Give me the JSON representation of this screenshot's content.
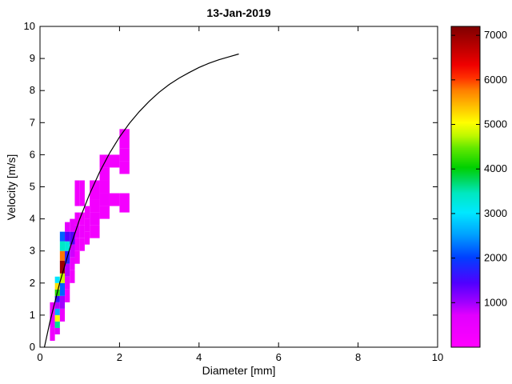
{
  "figure": {
    "title": "13-Jan-2019",
    "xlabel": "Diameter [mm]",
    "ylabel": "Velocity [m/s]"
  },
  "chart_data": {
    "type": "heatmap",
    "title": "13-Jan-2019",
    "xlabel": "Diameter [mm]",
    "ylabel": "Velocity [m/s]",
    "xlim": [
      0,
      10
    ],
    "ylim": [
      0,
      10
    ],
    "xticks": [
      0,
      2,
      4,
      6,
      8,
      10
    ],
    "yticks": [
      0,
      1,
      2,
      3,
      4,
      5,
      6,
      7,
      8,
      9,
      10
    ],
    "grid": false,
    "colorbar": {
      "min": 0,
      "max": 7200,
      "ticks": [
        1000,
        2000,
        3000,
        4000,
        5000,
        6000,
        7000
      ],
      "position": "right"
    },
    "colormap": [
      [
        0.0,
        "#ff00ff"
      ],
      [
        0.1,
        "#e100ff"
      ],
      [
        0.14,
        "#a000ff"
      ],
      [
        0.2,
        "#5000ff"
      ],
      [
        0.28,
        "#0040ff"
      ],
      [
        0.35,
        "#00a0ff"
      ],
      [
        0.42,
        "#00e8ff"
      ],
      [
        0.48,
        "#00e8c0"
      ],
      [
        0.52,
        "#00d860"
      ],
      [
        0.56,
        "#00d000"
      ],
      [
        0.62,
        "#60e800"
      ],
      [
        0.66,
        "#c0f800"
      ],
      [
        0.7,
        "#ffff00"
      ],
      [
        0.75,
        "#ffc000"
      ],
      [
        0.8,
        "#ff8000"
      ],
      [
        0.84,
        "#ff3000"
      ],
      [
        0.88,
        "#f00000"
      ],
      [
        0.93,
        "#c00000"
      ],
      [
        1.0,
        "#7f0000"
      ]
    ],
    "cells_format": [
      "d0",
      "d1",
      "v0",
      "v1",
      "count"
    ],
    "cells": [
      [
        0.25,
        0.375,
        0.2,
        0.6,
        350
      ],
      [
        0.25,
        0.375,
        0.6,
        1.0,
        600
      ],
      [
        0.25,
        0.375,
        1.0,
        1.4,
        450
      ],
      [
        0.375,
        0.5,
        0.4,
        0.6,
        700
      ],
      [
        0.375,
        0.5,
        0.6,
        0.8,
        3600
      ],
      [
        0.375,
        0.5,
        0.8,
        1.0,
        5000
      ],
      [
        0.375,
        0.5,
        1.0,
        1.2,
        2600
      ],
      [
        0.375,
        0.5,
        1.2,
        1.4,
        900
      ],
      [
        0.375,
        0.5,
        1.4,
        1.6,
        1600
      ],
      [
        0.375,
        0.5,
        1.6,
        1.8,
        4200
      ],
      [
        0.375,
        0.5,
        1.8,
        2.0,
        5200
      ],
      [
        0.375,
        0.5,
        2.0,
        2.2,
        3000
      ],
      [
        0.5,
        0.625,
        0.8,
        1.2,
        400
      ],
      [
        0.5,
        0.625,
        1.2,
        1.6,
        1000
      ],
      [
        0.5,
        0.625,
        1.6,
        2.0,
        2200
      ],
      [
        0.5,
        0.625,
        2.0,
        2.3,
        4800
      ],
      [
        0.5,
        0.625,
        2.3,
        2.7,
        7000
      ],
      [
        0.5,
        0.625,
        2.7,
        3.0,
        5800
      ],
      [
        0.5,
        0.625,
        3.0,
        3.3,
        3400
      ],
      [
        0.5,
        0.625,
        3.3,
        3.6,
        2200
      ],
      [
        0.625,
        0.75,
        1.4,
        1.8,
        350
      ],
      [
        0.625,
        0.75,
        1.8,
        2.2,
        550
      ],
      [
        0.625,
        0.75,
        2.2,
        2.6,
        900
      ],
      [
        0.625,
        0.75,
        2.6,
        3.0,
        1700
      ],
      [
        0.625,
        0.75,
        3.0,
        3.3,
        3300
      ],
      [
        0.625,
        0.75,
        3.3,
        3.6,
        1400
      ],
      [
        0.625,
        0.75,
        3.6,
        3.9,
        600
      ],
      [
        0.75,
        0.875,
        2.0,
        2.4,
        300
      ],
      [
        0.75,
        0.875,
        2.4,
        2.8,
        450
      ],
      [
        0.75,
        0.875,
        2.8,
        3.2,
        800
      ],
      [
        0.75,
        0.875,
        3.2,
        3.6,
        1400
      ],
      [
        0.75,
        0.875,
        3.6,
        4.0,
        500
      ],
      [
        0.875,
        1.0,
        2.6,
        3.0,
        300
      ],
      [
        0.875,
        1.0,
        3.0,
        3.4,
        450
      ],
      [
        0.875,
        1.0,
        3.4,
        3.8,
        700
      ],
      [
        0.875,
        1.0,
        3.8,
        4.2,
        400
      ],
      [
        0.875,
        1.0,
        4.4,
        5.2,
        320
      ],
      [
        1.0,
        1.125,
        3.0,
        3.4,
        280
      ],
      [
        1.0,
        1.125,
        3.4,
        3.8,
        380
      ],
      [
        1.0,
        1.125,
        3.8,
        4.2,
        320
      ],
      [
        1.0,
        1.125,
        4.4,
        5.2,
        300
      ],
      [
        1.125,
        1.25,
        3.2,
        3.6,
        280
      ],
      [
        1.125,
        1.25,
        3.6,
        4.0,
        340
      ],
      [
        1.125,
        1.25,
        4.0,
        4.4,
        300
      ],
      [
        1.25,
        1.5,
        3.4,
        3.8,
        300
      ],
      [
        1.25,
        1.5,
        3.8,
        4.2,
        340
      ],
      [
        1.25,
        1.5,
        4.2,
        4.6,
        300
      ],
      [
        1.25,
        1.5,
        4.6,
        5.2,
        280
      ],
      [
        1.5,
        1.75,
        4.0,
        4.4,
        280
      ],
      [
        1.5,
        1.75,
        4.4,
        4.8,
        320
      ],
      [
        1.5,
        1.75,
        4.8,
        5.2,
        280
      ],
      [
        1.5,
        1.75,
        5.2,
        5.6,
        300
      ],
      [
        1.5,
        1.75,
        5.6,
        6.0,
        260
      ],
      [
        1.75,
        2.0,
        4.4,
        4.8,
        260
      ],
      [
        1.75,
        2.0,
        5.6,
        6.0,
        280
      ],
      [
        2.0,
        2.25,
        4.2,
        4.8,
        260
      ],
      [
        2.0,
        2.25,
        5.4,
        5.8,
        260
      ],
      [
        2.0,
        2.25,
        5.8,
        6.2,
        300
      ],
      [
        2.0,
        2.25,
        6.2,
        6.8,
        260
      ]
    ],
    "curve": {
      "name": "terminal-velocity-curve",
      "color": "#000000",
      "points": [
        [
          0.11,
          0.0
        ],
        [
          0.25,
          0.79
        ],
        [
          0.5,
          2.02
        ],
        [
          0.75,
          3.08
        ],
        [
          1.0,
          4.0
        ],
        [
          1.25,
          4.78
        ],
        [
          1.5,
          5.46
        ],
        [
          1.75,
          6.05
        ],
        [
          2.0,
          6.55
        ],
        [
          2.25,
          6.98
        ],
        [
          2.5,
          7.35
        ],
        [
          2.75,
          7.67
        ],
        [
          3.0,
          7.95
        ],
        [
          3.25,
          8.19
        ],
        [
          3.5,
          8.39
        ],
        [
          3.75,
          8.56
        ],
        [
          4.0,
          8.72
        ],
        [
          4.25,
          8.85
        ],
        [
          4.5,
          8.96
        ],
        [
          4.75,
          9.05
        ],
        [
          5.0,
          9.14
        ]
      ]
    }
  }
}
